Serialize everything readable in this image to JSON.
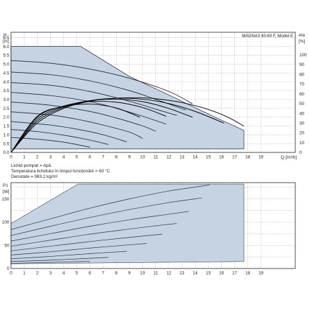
{
  "chart_data": [
    {
      "type": "line",
      "title": "MAGNA3 40-60 F, Model E",
      "ylabel": "H",
      "ylabel_unit": "[m]",
      "xlabel": "Q [m³/h]",
      "y2label": "eta",
      "y2label_unit": "[%]",
      "xlim": [
        0,
        19
      ],
      "ylim": [
        0,
        6.8
      ],
      "y2lim": [
        0,
        123
      ],
      "x_ticks": [
        "0",
        "1",
        "2",
        "3",
        "4",
        "5",
        "6",
        "7",
        "8",
        "9",
        "10",
        "11",
        "12",
        "13",
        "14",
        "15",
        "16",
        "17",
        "18",
        "19"
      ],
      "y_ticks": [
        "0.0",
        "0.5",
        "1.0",
        "1.5",
        "2.0",
        "2.5",
        "3.0",
        "3.5",
        "4.0",
        "4.5",
        "5.0",
        "5.5",
        "6.0",
        "6.5"
      ],
      "y2_ticks": [
        "0",
        "10",
        "20",
        "30",
        "40",
        "50",
        "60",
        "70",
        "80",
        "90",
        "100"
      ],
      "grid": true,
      "max_curve": [
        [
          0,
          6.0
        ],
        [
          5.3,
          6.0
        ],
        [
          9,
          4.3
        ],
        [
          12,
          3.25
        ],
        [
          15.5,
          2.0
        ],
        [
          17.7,
          1.25
        ],
        [
          17.7,
          1.05
        ]
      ],
      "min_curve": [
        [
          0,
          0.2
        ],
        [
          17.7,
          0.2
        ]
      ],
      "speed_curves": [
        {
          "x": [
            0,
            3,
            6,
            9,
            12,
            13.8
          ],
          "y": [
            5.2,
            5.05,
            4.72,
            4.2,
            3.45,
            2.75
          ]
        },
        {
          "x": [
            0,
            3,
            6,
            9,
            11,
            13.3
          ],
          "y": [
            4.55,
            4.4,
            4.05,
            3.5,
            3.0,
            2.4
          ]
        },
        {
          "x": [
            0,
            3,
            6,
            9,
            11,
            12.6
          ],
          "y": [
            3.95,
            3.8,
            3.45,
            2.9,
            2.45,
            2.1
          ]
        },
        {
          "x": [
            0,
            3,
            6,
            8,
            10,
            11.8
          ],
          "y": [
            3.4,
            3.22,
            2.88,
            2.5,
            2.05,
            1.6
          ]
        },
        {
          "x": [
            0,
            3,
            6,
            8,
            10,
            11.0
          ],
          "y": [
            2.85,
            2.67,
            2.32,
            1.95,
            1.5,
            1.2
          ]
        },
        {
          "x": [
            0,
            3,
            5,
            7,
            9,
            10.0
          ],
          "y": [
            2.3,
            2.12,
            1.88,
            1.55,
            1.15,
            0.8
          ]
        },
        {
          "x": [
            0,
            3,
            5,
            7,
            8.8
          ],
          "y": [
            1.75,
            1.55,
            1.32,
            1.0,
            0.6
          ]
        },
        {
          "x": [
            0,
            2,
            4,
            6,
            7.4
          ],
          "y": [
            1.3,
            1.18,
            0.98,
            0.7,
            0.45
          ]
        },
        {
          "x": [
            0,
            2,
            4,
            6.0
          ],
          "y": [
            0.85,
            0.75,
            0.58,
            0.3
          ]
        }
      ],
      "eta_curves": [
        {
          "x": [
            0,
            2,
            4,
            6,
            8,
            9.5,
            11,
            13,
            15,
            16.5,
            17.7
          ],
          "y": [
            0,
            30,
            45,
            52.5,
            55.5,
            56,
            55,
            51,
            44,
            36,
            27
          ]
        },
        {
          "x": [
            0,
            2,
            4,
            6,
            8,
            10,
            12,
            14,
            16.2
          ],
          "y": [
            0,
            32,
            46,
            53,
            55.5,
            54.5,
            50,
            42,
            30
          ]
        },
        {
          "x": [
            0,
            2,
            4,
            6,
            8,
            10,
            12,
            13.8
          ],
          "y": [
            0,
            34,
            47,
            53,
            54.5,
            52,
            45,
            36
          ]
        },
        {
          "x": [
            0,
            2,
            4,
            6,
            8,
            10,
            11.8
          ],
          "y": [
            0,
            36,
            47.5,
            52,
            51.5,
            46,
            37
          ]
        },
        {
          "x": [
            0,
            2,
            4,
            6,
            8,
            9.8
          ],
          "y": [
            0,
            37,
            47,
            49.5,
            45.5,
            36
          ]
        }
      ],
      "annotations": [
        "Lichid pompat = Apă",
        "Temperatura lichidului în timpul funcționării = 60 °C",
        "Densitate = 983.2 kg/m³"
      ]
    },
    {
      "type": "line",
      "ylabel": "P1",
      "ylabel_unit": "[W]",
      "xlim": [
        0,
        19
      ],
      "ylim": [
        0,
        185
      ],
      "x_ticks": [
        "0",
        "1",
        "2",
        "3",
        "4",
        "5",
        "6",
        "7",
        "8",
        "9",
        "10",
        "11",
        "12",
        "13",
        "14",
        "15",
        "16",
        "17",
        "18",
        "19"
      ],
      "y_ticks": [
        "0",
        "50",
        "100",
        "150"
      ],
      "grid": true,
      "max_curve": [
        [
          0,
          97
        ],
        [
          5.1,
          182
        ],
        [
          17.7,
          182
        ]
      ],
      "min_curve": [
        [
          0,
          10
        ],
        [
          17.7,
          15
        ]
      ],
      "power_curves": [
        {
          "x": [
            0,
            3,
            6,
            9,
            12,
            15.1
          ],
          "y": [
            84,
            107,
            130,
            150,
            167,
            180
          ]
        },
        {
          "x": [
            0,
            3,
            6,
            9,
            12,
            14.5
          ],
          "y": [
            71,
            91,
            110,
            127,
            142,
            152
          ]
        },
        {
          "x": [
            0,
            3,
            6,
            9,
            12,
            13.5
          ],
          "y": [
            59,
            75,
            91,
            105,
            117,
            123
          ]
        },
        {
          "x": [
            0,
            3,
            6,
            9,
            11,
            12.6
          ],
          "y": [
            48,
            61,
            74,
            85,
            92,
            97
          ]
        },
        {
          "x": [
            0,
            3,
            6,
            9,
            11.5
          ],
          "y": [
            38,
            48,
            58,
            67,
            74
          ]
        },
        {
          "x": [
            0,
            3,
            6,
            9,
            10.3
          ],
          "y": [
            29,
            36,
            44,
            51,
            54
          ]
        },
        {
          "x": [
            0,
            3,
            6,
            8.8
          ],
          "y": [
            21,
            26,
            32,
            37
          ]
        },
        {
          "x": [
            0,
            3,
            6,
            7.4
          ],
          "y": [
            15,
            18,
            22,
            24
          ]
        },
        {
          "x": [
            0,
            2,
            4,
            6.0
          ],
          "y": [
            11,
            12.5,
            14,
            15
          ]
        }
      ]
    }
  ]
}
